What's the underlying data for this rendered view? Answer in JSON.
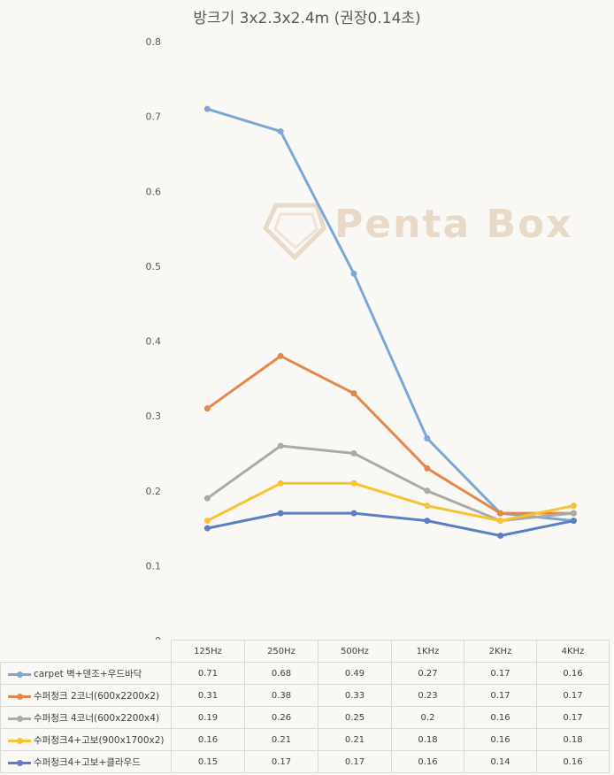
{
  "chart_data": {
    "type": "line",
    "title": "방크기 3x2.3x2.4m (권장0.14초)",
    "categories": [
      "125Hz",
      "250Hz",
      "500Hz",
      "1KHz",
      "2KHz",
      "4KHz"
    ],
    "ylim": [
      0,
      0.8
    ],
    "yticks": [
      "0",
      "0.1",
      "0.2",
      "0.3",
      "0.4",
      "0.5",
      "0.6",
      "0.7",
      "0.8"
    ],
    "grid": false,
    "legend": "data-table",
    "series": [
      {
        "name": "carpet 벽+덴조+우드바닥",
        "color": "#7ba7d7",
        "values": [
          0.71,
          0.68,
          0.49,
          0.27,
          0.17,
          0.16
        ]
      },
      {
        "name": "수퍼청크 2코너(600x2200x2)",
        "color": "#e6874a",
        "values": [
          0.31,
          0.38,
          0.33,
          0.23,
          0.17,
          0.17
        ]
      },
      {
        "name": "수퍼청크 4코너(600x2200x4)",
        "color": "#aaaaaa",
        "values": [
          0.19,
          0.26,
          0.25,
          0.2,
          0.16,
          0.17
        ]
      },
      {
        "name": "수퍼청크4+고보(900x1700x2)",
        "color": "#f7c32e",
        "values": [
          0.16,
          0.21,
          0.21,
          0.18,
          0.16,
          0.18
        ]
      },
      {
        "name": "수퍼청크4+고보+클라우드",
        "color": "#5b7fc4",
        "values": [
          0.15,
          0.17,
          0.17,
          0.16,
          0.14,
          0.16
        ]
      }
    ],
    "table_values": [
      [
        "0.71",
        "0.68",
        "0.49",
        "0.27",
        "0.17",
        "0.16"
      ],
      [
        "0.31",
        "0.38",
        "0.33",
        "0.23",
        "0.17",
        "0.17"
      ],
      [
        "0.19",
        "0.26",
        "0.25",
        "0.2",
        "0.16",
        "0.17"
      ],
      [
        "0.16",
        "0.21",
        "0.21",
        "0.18",
        "0.16",
        "0.18"
      ],
      [
        "0.15",
        "0.17",
        "0.17",
        "0.16",
        "0.14",
        "0.16"
      ]
    ]
  },
  "watermark": {
    "text": "Penta Box",
    "color": "#e8d9c8"
  }
}
